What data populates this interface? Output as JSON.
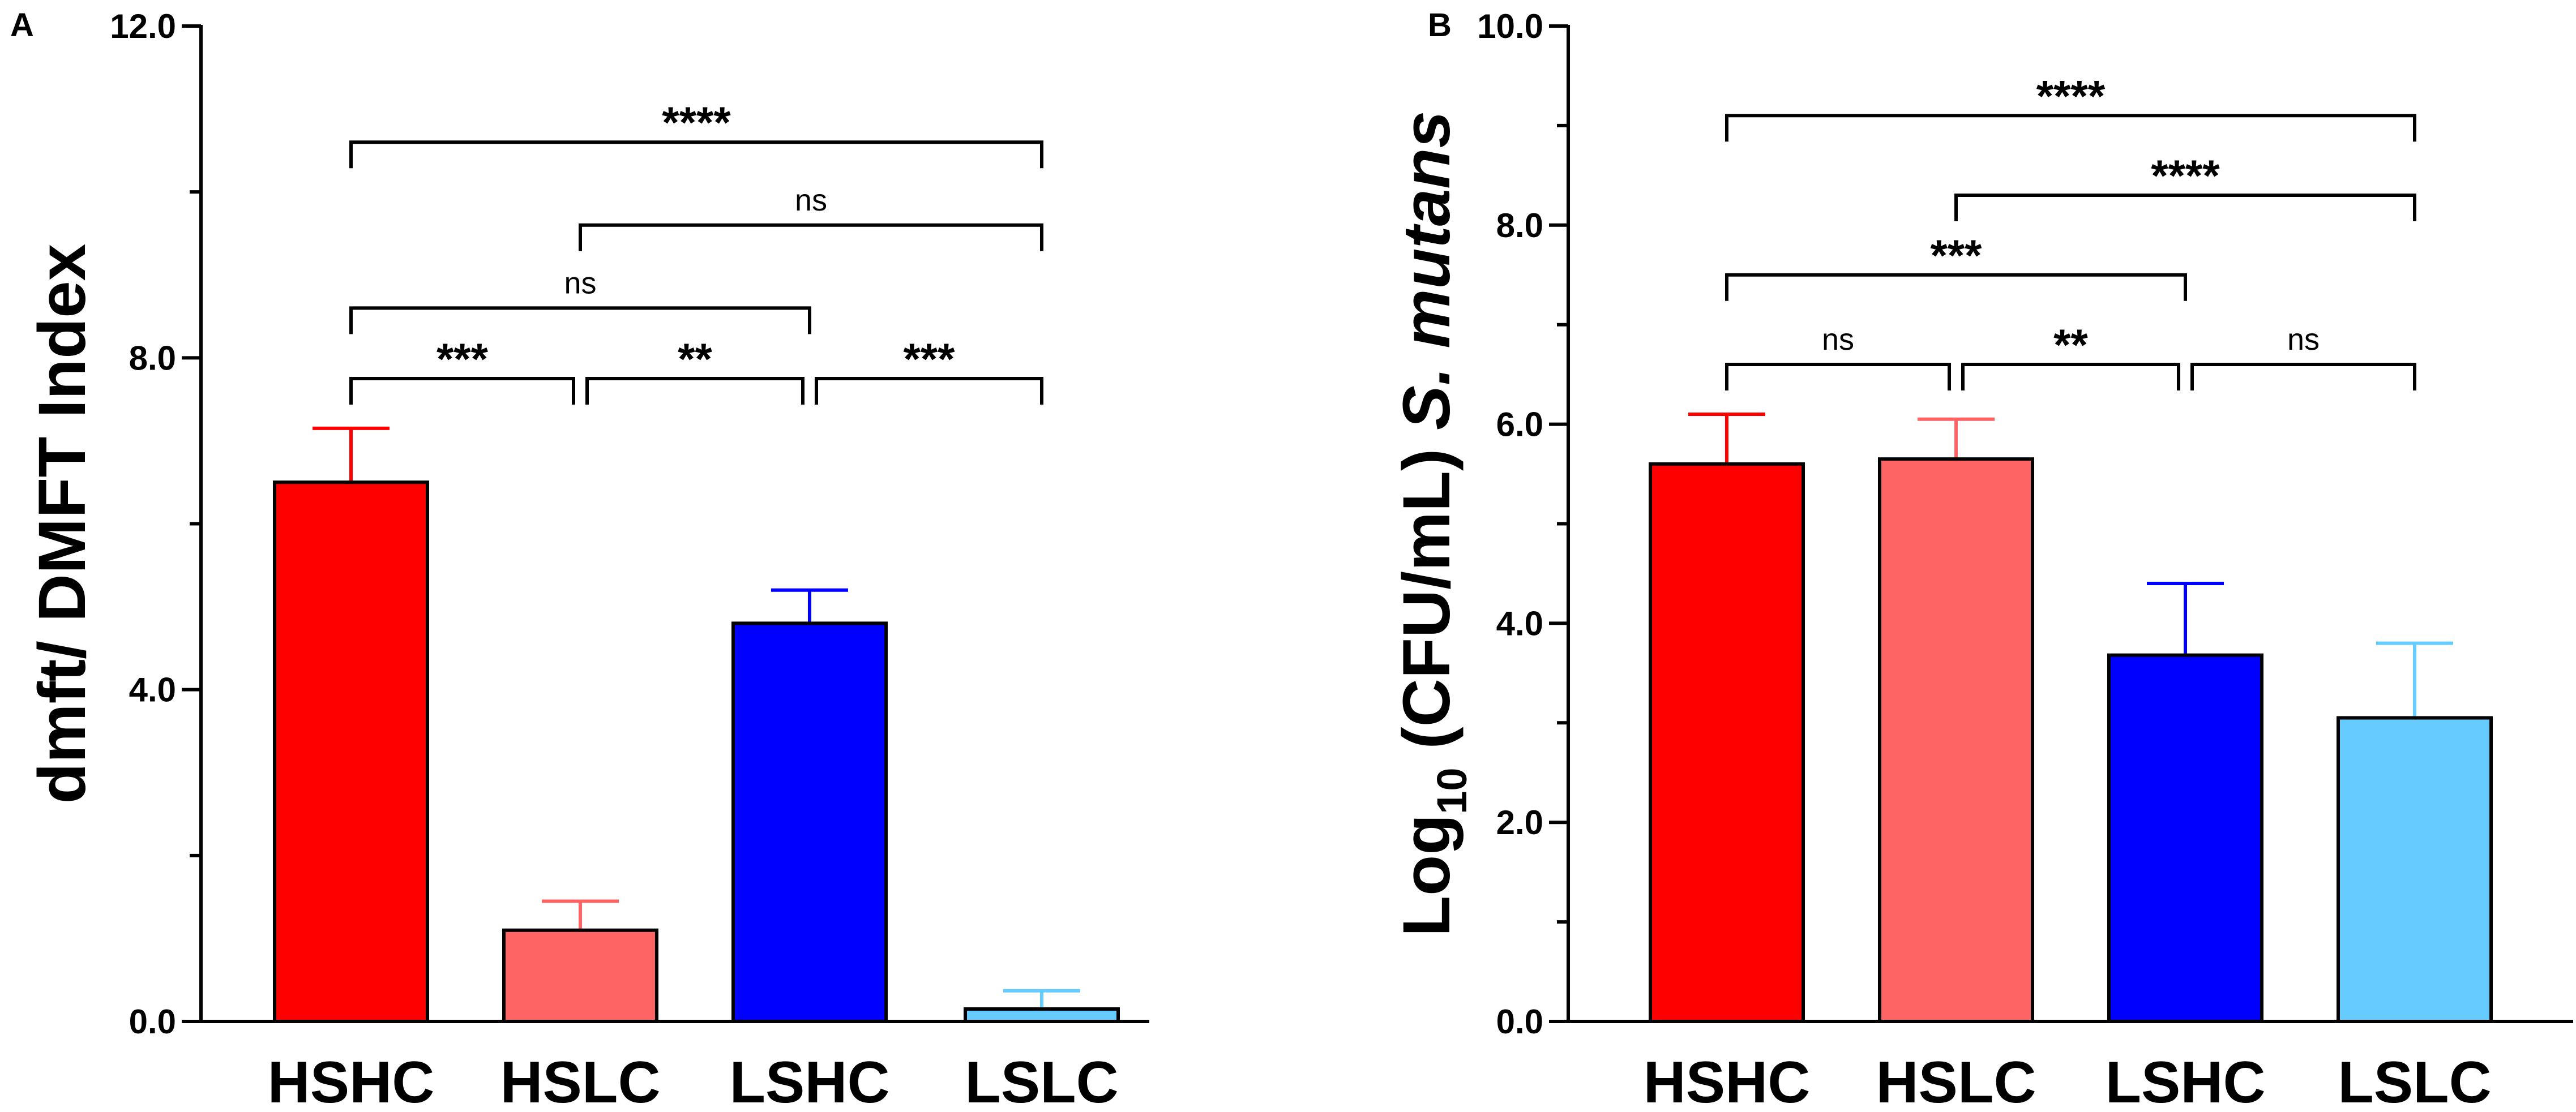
{
  "chart_data": [
    {
      "type": "bar",
      "panel": "A",
      "title": "",
      "xlabel": "",
      "ylabel": "dmft/ DMFT Index",
      "ylim": [
        0,
        12
      ],
      "y_ticks": [
        "0.0",
        "4.0",
        "8.0",
        "12.0"
      ],
      "categories": [
        "HSHC",
        "HSLC",
        "LSHC",
        "LSLC"
      ],
      "values": [
        6.5,
        1.1,
        4.8,
        0.15
      ],
      "errors": [
        0.65,
        0.35,
        0.4,
        0.22
      ],
      "colors": [
        "#ff0000",
        "#ff6464",
        "#0000ff",
        "#66ccff"
      ],
      "significance": [
        {
          "from": 0,
          "to": 3,
          "label": "****",
          "y": 10.6
        },
        {
          "from": 1,
          "to": 3,
          "label": "ns",
          "y": 9.6
        },
        {
          "from": 0,
          "to": 2,
          "label": "ns",
          "y": 8.6
        },
        {
          "from": 0,
          "to": 1,
          "label": "***",
          "y": 7.75
        },
        {
          "from": 1,
          "to": 2,
          "label": "**",
          "y": 7.75
        },
        {
          "from": 2,
          "to": 3,
          "label": "***",
          "y": 7.75
        }
      ]
    },
    {
      "type": "bar",
      "panel": "B",
      "title": "",
      "xlabel": "",
      "ylabel": {
        "prefix": "Log",
        "subscript": "10",
        "middle": " (CFU/mL) ",
        "italic": "S. mutans"
      },
      "ylim": [
        0,
        10
      ],
      "y_ticks": [
        "0.0",
        "2.0",
        "4.0",
        "6.0",
        "8.0",
        "10.0"
      ],
      "categories": [
        "HSHC",
        "HSLC",
        "LSHC",
        "LSLC"
      ],
      "values": [
        5.6,
        5.65,
        3.68,
        3.05
      ],
      "errors": [
        0.5,
        0.4,
        0.72,
        0.75
      ],
      "colors": [
        "#ff0000",
        "#ff6464",
        "#0000ff",
        "#66ccff"
      ],
      "significance": [
        {
          "from": 0,
          "to": 3,
          "label": "****",
          "y": 9.1
        },
        {
          "from": 1,
          "to": 3,
          "label": "****",
          "y": 8.3
        },
        {
          "from": 0,
          "to": 2,
          "label": "***",
          "y": 7.5
        },
        {
          "from": 0,
          "to": 1,
          "label": "ns",
          "y": 6.6
        },
        {
          "from": 1,
          "to": 2,
          "label": "**",
          "y": 6.6
        },
        {
          "from": 2,
          "to": 3,
          "label": "ns",
          "y": 6.6
        }
      ]
    }
  ]
}
